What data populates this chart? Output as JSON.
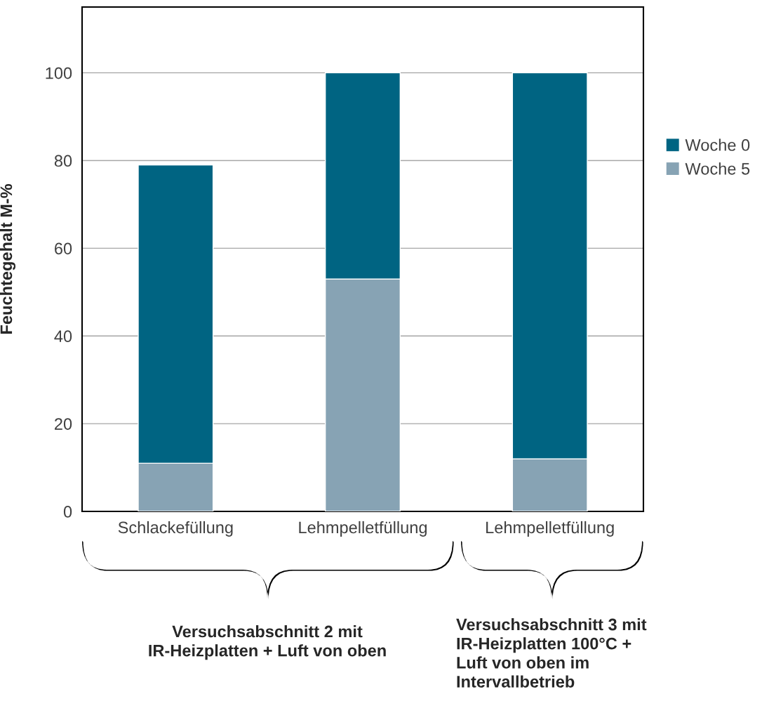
{
  "chart_data": {
    "type": "bar",
    "stacked": true,
    "ylabel": "Feuchtegehalt M-%",
    "categories": [
      "Schlackefüllung",
      "Lehmpelletfüllung",
      "Lehmpelletfüllung"
    ],
    "series": [
      {
        "name": "Woche 5",
        "color": "#87a3b4",
        "values": [
          11,
          53,
          12
        ]
      },
      {
        "name": "Woche 0",
        "color": "#006482",
        "values": [
          68,
          47,
          88
        ]
      }
    ],
    "ylim": [
      0,
      115
    ],
    "yticks": [
      0,
      20,
      40,
      60,
      80,
      100
    ],
    "grid": "y",
    "legend": "right",
    "annotations": [
      "Versuchsabschnitt 2 mit\nIR-Heizplatten + Luft von oben",
      "Versuchsabschnitt 3 mit\nIR-Heizplatten 100°C +\nLuft von oben im\nIntervallbetrieb"
    ]
  }
}
